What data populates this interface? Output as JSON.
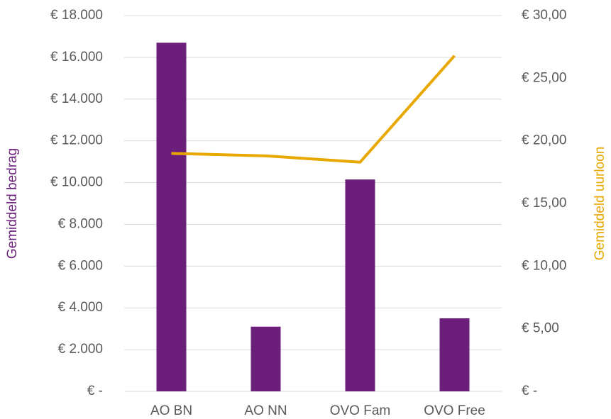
{
  "chart_data": {
    "type": "combo",
    "categories": [
      "AO BN",
      "AO NN",
      "OVO Fam",
      "OVO Free"
    ],
    "ylabel": "Gemiddeld bedrag",
    "y2label": "Gemiddeld uurloon",
    "ylim": [
      0,
      18000
    ],
    "yticks": [
      {
        "value": 0,
        "label": "€ -"
      },
      {
        "value": 2000,
        "label": "€ 2.000"
      },
      {
        "value": 4000,
        "label": "€ 4.000"
      },
      {
        "value": 6000,
        "label": "€ 6.000"
      },
      {
        "value": 8000,
        "label": "€ 8.000"
      },
      {
        "value": 10000,
        "label": "€ 10.000"
      },
      {
        "value": 12000,
        "label": "€ 12.000"
      },
      {
        "value": 14000,
        "label": "€ 14.000"
      },
      {
        "value": 16000,
        "label": "€ 16.000"
      },
      {
        "value": 18000,
        "label": "€ 18.000"
      }
    ],
    "y2lim": [
      0,
      30
    ],
    "y2ticks": [
      {
        "value": 0,
        "label": "€ -"
      },
      {
        "value": 5,
        "label": "€ 5,00"
      },
      {
        "value": 10,
        "label": "€ 10,00"
      },
      {
        "value": 15,
        "label": "€ 15,00"
      },
      {
        "value": 20,
        "label": "€ 20,00"
      },
      {
        "value": 25,
        "label": "€ 25,00"
      },
      {
        "value": 30,
        "label": "€ 30,00"
      }
    ],
    "grid": true,
    "series": [
      {
        "type": "bar",
        "color": "#6b1f7a",
        "values": [
          16700,
          3100,
          10150,
          3500
        ]
      },
      {
        "type": "line",
        "axis": "y2",
        "color": "#e8a800",
        "values": [
          19.0,
          18.8,
          18.3,
          26.8
        ]
      }
    ]
  }
}
